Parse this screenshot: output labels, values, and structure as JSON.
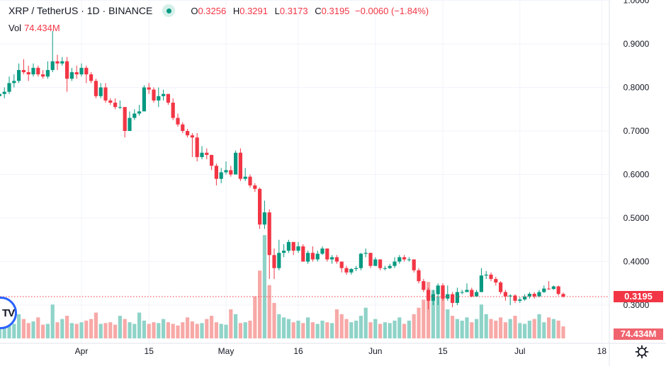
{
  "header": {
    "symbol": "XRP / TetherUS · 1D · BINANCE",
    "ohlc": {
      "o_label": "O",
      "o": "0.3256",
      "h_label": "H",
      "h": "0.3291",
      "l_label": "L",
      "l": "0.3173",
      "c_label": "C",
      "c": "0.3195",
      "change": "−0.0060 (−1.84%)"
    },
    "vol_label": "Vol",
    "vol_value": "74.434M"
  },
  "colors": {
    "up": "#089981",
    "down": "#f23645",
    "vol_up": "#8fd3c8",
    "vol_down": "#f7a9a7",
    "grid": "#f0f3fa",
    "price_line": "#f23645"
  },
  "price_label": "0.3195",
  "volume_label": "74.434M",
  "gear_icon": "gear-icon",
  "chart_data": {
    "type": "candlestick",
    "title": "XRP / TetherUS · 1D · BINANCE",
    "y_ticks": [
      "0.3000",
      "0.4000",
      "0.5000",
      "0.6000",
      "0.7000",
      "0.8000",
      "0.9000",
      "1.0000"
    ],
    "x_ticks": [
      {
        "label": "Apr",
        "date": "Apr 1"
      },
      {
        "label": "15",
        "date": "Apr 15"
      },
      {
        "label": "May",
        "date": "May 1"
      },
      {
        "label": "16",
        "date": "May 16"
      },
      {
        "label": "Jun",
        "date": "Jun 1"
      },
      {
        "label": "15",
        "date": "Jun 15"
      },
      {
        "label": "Jul",
        "date": "Jul 1"
      },
      {
        "label": "18",
        "date": "Jul 18"
      }
    ],
    "ylim": [
      0.28,
      1.0
    ],
    "grid": true,
    "last_price": 0.3195,
    "volume_unit": "M",
    "dates": [
      "Mar 13",
      "Mar 14",
      "Mar 15",
      "Mar 16",
      "Mar 17",
      "Mar 18",
      "Mar 19",
      "Mar 20",
      "Mar 21",
      "Mar 22",
      "Mar 23",
      "Mar 24",
      "Mar 25",
      "Mar 26",
      "Mar 27",
      "Mar 28",
      "Mar 29",
      "Mar 30",
      "Mar 31",
      "Apr 1",
      "Apr 2",
      "Apr 3",
      "Apr 4",
      "Apr 5",
      "Apr 6",
      "Apr 7",
      "Apr 8",
      "Apr 9",
      "Apr 10",
      "Apr 11",
      "Apr 12",
      "Apr 13",
      "Apr 14",
      "Apr 15",
      "Apr 16",
      "Apr 17",
      "Apr 18",
      "Apr 19",
      "Apr 20",
      "Apr 21",
      "Apr 22",
      "Apr 23",
      "Apr 24",
      "Apr 25",
      "Apr 26",
      "Apr 27",
      "Apr 28",
      "Apr 29",
      "Apr 30",
      "May 1",
      "May 2",
      "May 3",
      "May 4",
      "May 5",
      "May 6",
      "May 7",
      "May 8",
      "May 9",
      "May 10",
      "May 11",
      "May 12",
      "May 13",
      "May 14",
      "May 15",
      "May 16",
      "May 17",
      "May 18",
      "May 19",
      "May 20",
      "May 21",
      "May 22",
      "May 23",
      "May 24",
      "May 25",
      "May 26",
      "May 27",
      "May 28",
      "May 29",
      "May 30",
      "May 31",
      "Jun 1",
      "Jun 2",
      "Jun 3",
      "Jun 4",
      "Jun 5",
      "Jun 6",
      "Jun 7",
      "Jun 8",
      "Jun 9",
      "Jun 10",
      "Jun 11",
      "Jun 12",
      "Jun 13",
      "Jun 14",
      "Jun 15",
      "Jun 16",
      "Jun 17",
      "Jun 18",
      "Jun 19",
      "Jun 20",
      "Jun 21",
      "Jun 22",
      "Jun 23",
      "Jun 24",
      "Jun 25",
      "Jun 26",
      "Jun 27",
      "Jun 28",
      "Jun 29",
      "Jun 30",
      "Jul 1",
      "Jul 2",
      "Jul 3",
      "Jul 4",
      "Jul 5",
      "Jul 6",
      "Jul 7",
      "Jul 8",
      "Jul 9",
      "Jul 10"
    ],
    "ohlc": [
      [
        0.755,
        0.772,
        0.75,
        0.765
      ],
      [
        0.765,
        0.79,
        0.76,
        0.78
      ],
      [
        0.78,
        0.795,
        0.77,
        0.785
      ],
      [
        0.785,
        0.8,
        0.775,
        0.79
      ],
      [
        0.79,
        0.825,
        0.785,
        0.81
      ],
      [
        0.81,
        0.83,
        0.8,
        0.815
      ],
      [
        0.815,
        0.855,
        0.81,
        0.84
      ],
      [
        0.84,
        0.865,
        0.83,
        0.835
      ],
      [
        0.835,
        0.85,
        0.815,
        0.83
      ],
      [
        0.83,
        0.855,
        0.825,
        0.845
      ],
      [
        0.845,
        0.85,
        0.825,
        0.83
      ],
      [
        0.83,
        0.84,
        0.82,
        0.825
      ],
      [
        0.825,
        0.86,
        0.82,
        0.84
      ],
      [
        0.84,
        0.93,
        0.835,
        0.86
      ],
      [
        0.86,
        0.875,
        0.84,
        0.855
      ],
      [
        0.855,
        0.87,
        0.85,
        0.86
      ],
      [
        0.86,
        0.87,
        0.79,
        0.82
      ],
      [
        0.82,
        0.845,
        0.815,
        0.835
      ],
      [
        0.835,
        0.85,
        0.82,
        0.83
      ],
      [
        0.83,
        0.855,
        0.825,
        0.845
      ],
      [
        0.845,
        0.85,
        0.81,
        0.83
      ],
      [
        0.83,
        0.835,
        0.81,
        0.815
      ],
      [
        0.815,
        0.82,
        0.775,
        0.78
      ],
      [
        0.78,
        0.81,
        0.775,
        0.8
      ],
      [
        0.8,
        0.81,
        0.765,
        0.77
      ],
      [
        0.77,
        0.775,
        0.76,
        0.765
      ],
      [
        0.765,
        0.775,
        0.75,
        0.755
      ],
      [
        0.755,
        0.77,
        0.75,
        0.755
      ],
      [
        0.755,
        0.755,
        0.685,
        0.7
      ],
      [
        0.7,
        0.745,
        0.7,
        0.73
      ],
      [
        0.73,
        0.75,
        0.725,
        0.74
      ],
      [
        0.74,
        0.76,
        0.735,
        0.745
      ],
      [
        0.745,
        0.805,
        0.745,
        0.8
      ],
      [
        0.8,
        0.81,
        0.785,
        0.795
      ],
      [
        0.795,
        0.8,
        0.765,
        0.77
      ],
      [
        0.77,
        0.8,
        0.755,
        0.78
      ],
      [
        0.78,
        0.795,
        0.77,
        0.785
      ],
      [
        0.785,
        0.785,
        0.76,
        0.765
      ],
      [
        0.765,
        0.775,
        0.725,
        0.73
      ],
      [
        0.73,
        0.74,
        0.71,
        0.715
      ],
      [
        0.715,
        0.72,
        0.695,
        0.7
      ],
      [
        0.7,
        0.705,
        0.685,
        0.69
      ],
      [
        0.69,
        0.695,
        0.64,
        0.685
      ],
      [
        0.685,
        0.695,
        0.63,
        0.64
      ],
      [
        0.64,
        0.665,
        0.635,
        0.65
      ],
      [
        0.65,
        0.66,
        0.635,
        0.645
      ],
      [
        0.645,
        0.645,
        0.61,
        0.62
      ],
      [
        0.62,
        0.625,
        0.575,
        0.59
      ],
      [
        0.59,
        0.615,
        0.58,
        0.605
      ],
      [
        0.605,
        0.63,
        0.6,
        0.61
      ],
      [
        0.61,
        0.62,
        0.595,
        0.6
      ],
      [
        0.6,
        0.655,
        0.6,
        0.65
      ],
      [
        0.65,
        0.66,
        0.585,
        0.59
      ],
      [
        0.59,
        0.615,
        0.585,
        0.595
      ],
      [
        0.595,
        0.6,
        0.57,
        0.575
      ],
      [
        0.575,
        0.58,
        0.56,
        0.567
      ],
      [
        0.567,
        0.57,
        0.475,
        0.485
      ],
      [
        0.485,
        0.54,
        0.475,
        0.513
      ],
      [
        0.513,
        0.52,
        0.36,
        0.415
      ],
      [
        0.415,
        0.43,
        0.36,
        0.385
      ],
      [
        0.385,
        0.45,
        0.38,
        0.42
      ],
      [
        0.42,
        0.44,
        0.41,
        0.425
      ],
      [
        0.425,
        0.45,
        0.42,
        0.445
      ],
      [
        0.445,
        0.445,
        0.415,
        0.425
      ],
      [
        0.425,
        0.445,
        0.42,
        0.435
      ],
      [
        0.435,
        0.44,
        0.4,
        0.4
      ],
      [
        0.4,
        0.425,
        0.395,
        0.42
      ],
      [
        0.42,
        0.435,
        0.4,
        0.405
      ],
      [
        0.405,
        0.425,
        0.4,
        0.418
      ],
      [
        0.418,
        0.435,
        0.415,
        0.43
      ],
      [
        0.43,
        0.43,
        0.4,
        0.405
      ],
      [
        0.405,
        0.415,
        0.395,
        0.41
      ],
      [
        0.41,
        0.415,
        0.395,
        0.4
      ],
      [
        0.4,
        0.4,
        0.375,
        0.385
      ],
      [
        0.385,
        0.39,
        0.37,
        0.375
      ],
      [
        0.375,
        0.385,
        0.37,
        0.383
      ],
      [
        0.383,
        0.39,
        0.378,
        0.385
      ],
      [
        0.385,
        0.42,
        0.38,
        0.418
      ],
      [
        0.418,
        0.43,
        0.41,
        0.42
      ],
      [
        0.42,
        0.42,
        0.385,
        0.39
      ],
      [
        0.39,
        0.41,
        0.39,
        0.405
      ],
      [
        0.405,
        0.405,
        0.38,
        0.385
      ],
      [
        0.385,
        0.39,
        0.38,
        0.385
      ],
      [
        0.385,
        0.395,
        0.383,
        0.39
      ],
      [
        0.39,
        0.41,
        0.385,
        0.4
      ],
      [
        0.4,
        0.415,
        0.395,
        0.41
      ],
      [
        0.41,
        0.415,
        0.4,
        0.405
      ],
      [
        0.405,
        0.41,
        0.4,
        0.405
      ],
      [
        0.405,
        0.405,
        0.375,
        0.38
      ],
      [
        0.38,
        0.385,
        0.35,
        0.355
      ],
      [
        0.355,
        0.36,
        0.33,
        0.335
      ],
      [
        0.335,
        0.34,
        0.29,
        0.31
      ],
      [
        0.31,
        0.335,
        0.3,
        0.325
      ],
      [
        0.325,
        0.35,
        0.3,
        0.345
      ],
      [
        0.345,
        0.35,
        0.31,
        0.315
      ],
      [
        0.315,
        0.345,
        0.31,
        0.325
      ],
      [
        0.325,
        0.33,
        0.295,
        0.305
      ],
      [
        0.305,
        0.34,
        0.3,
        0.33
      ],
      [
        0.33,
        0.335,
        0.325,
        0.33
      ],
      [
        0.33,
        0.35,
        0.33,
        0.335
      ],
      [
        0.335,
        0.34,
        0.318,
        0.32
      ],
      [
        0.32,
        0.335,
        0.32,
        0.33
      ],
      [
        0.33,
        0.385,
        0.33,
        0.368
      ],
      [
        0.368,
        0.378,
        0.36,
        0.37
      ],
      [
        0.37,
        0.375,
        0.355,
        0.36
      ],
      [
        0.36,
        0.365,
        0.345,
        0.352
      ],
      [
        0.352,
        0.355,
        0.325,
        0.33
      ],
      [
        0.33,
        0.335,
        0.31,
        0.32
      ],
      [
        0.32,
        0.325,
        0.3,
        0.322
      ],
      [
        0.322,
        0.325,
        0.305,
        0.31
      ],
      [
        0.31,
        0.318,
        0.305,
        0.313
      ],
      [
        0.313,
        0.325,
        0.31,
        0.32
      ],
      [
        0.32,
        0.33,
        0.315,
        0.326
      ],
      [
        0.326,
        0.33,
        0.315,
        0.32
      ],
      [
        0.32,
        0.335,
        0.318,
        0.33
      ],
      [
        0.33,
        0.345,
        0.328,
        0.338
      ],
      [
        0.338,
        0.355,
        0.335,
        0.337
      ],
      [
        0.337,
        0.345,
        0.335,
        0.343
      ],
      [
        0.343,
        0.345,
        0.322,
        0.3256
      ],
      [
        0.3256,
        0.3291,
        0.3173,
        0.3195
      ]
    ],
    "volume": [
      95,
      110,
      85,
      130,
      100,
      90,
      150,
      120,
      95,
      105,
      130,
      85,
      90,
      210,
      100,
      120,
      140,
      95,
      90,
      100,
      110,
      120,
      160,
      90,
      95,
      100,
      85,
      140,
      120,
      100,
      90,
      160,
      110,
      90,
      100,
      95,
      120,
      100,
      90,
      80,
      100,
      130,
      105,
      90,
      95,
      120,
      140,
      100,
      90,
      85,
      180,
      150,
      95,
      100,
      110,
      260,
      420,
      640,
      330,
      220,
      150,
      130,
      120,
      100,
      110,
      95,
      130,
      100,
      90,
      110,
      100,
      95,
      180,
      150,
      120,
      100,
      110,
      140,
      190,
      100,
      120,
      90,
      100,
      95,
      110,
      130,
      90,
      110,
      150,
      190,
      240,
      350,
      300,
      260,
      330,
      180,
      140,
      120,
      110,
      130,
      100,
      120,
      210,
      150,
      120,
      110,
      130,
      100,
      120,
      140,
      95,
      90,
      110,
      120,
      150,
      100,
      130,
      120,
      110,
      74.434
    ]
  }
}
